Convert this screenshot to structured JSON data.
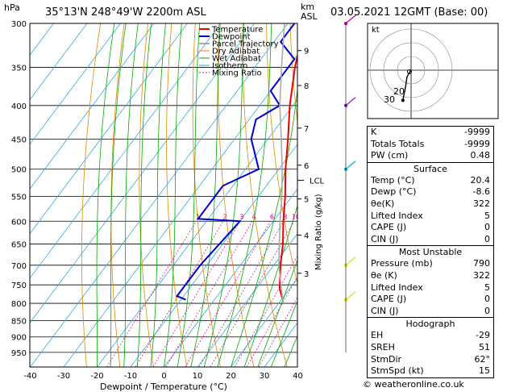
{
  "header": {
    "location": "35°13'N  248°49'W  2200m  ASL",
    "datetime": "03.05.2021  12GMT  (Base: 00)"
  },
  "axes": {
    "ylabel_left": "hPa",
    "ylabel_right_units": [
      "km",
      "ASL"
    ],
    "xlabel": "Dewpoint / Temperature (°C)",
    "mixing_label": "Mixing Ratio (g/kg)",
    "lcl_label": "LCL"
  },
  "legend": [
    "Temperature",
    "Dewpoint",
    "Parcel Trajectory",
    "Dry Adiabat",
    "Wet Adiabat",
    "Isotherm",
    "Mixing Ratio"
  ],
  "footer": "© weatheronline.co.uk",
  "hodo_label": "kt",
  "chart_data": {
    "type": "line",
    "pressure_levels": [
      300,
      350,
      400,
      450,
      500,
      550,
      600,
      650,
      700,
      750,
      800,
      850,
      900,
      950
    ],
    "x_ticks": [
      -40,
      -30,
      -20,
      -10,
      0,
      10,
      20,
      30,
      40
    ],
    "km_ticks": [
      {
        "km": 3,
        "p": 720
      },
      {
        "km": 4,
        "p": 630
      },
      {
        "km": 5,
        "p": 555
      },
      {
        "km": 6,
        "p": 493
      },
      {
        "km": 7,
        "p": 433
      },
      {
        "km": 8,
        "p": 373
      },
      {
        "km": 9,
        "p": 330
      }
    ],
    "mixing_ratios": [
      1,
      2,
      3,
      4,
      6,
      8,
      10,
      16,
      20,
      25
    ],
    "series": [
      {
        "name": "Temperature",
        "color": "#ee0000",
        "points": [
          [
            790,
            20.4
          ],
          [
            760,
            17
          ],
          [
            700,
            12
          ],
          [
            650,
            8
          ],
          [
            600,
            3
          ],
          [
            550,
            -2
          ],
          [
            500,
            -8
          ],
          [
            450,
            -14
          ],
          [
            400,
            -21
          ],
          [
            350,
            -28
          ],
          [
            300,
            -35
          ]
        ]
      },
      {
        "name": "Dewpoint",
        "color": "#0000cc",
        "points": [
          [
            790,
            -8.6
          ],
          [
            780,
            -12
          ],
          [
            700,
            -12
          ],
          [
            650,
            -11
          ],
          [
            600,
            -10
          ],
          [
            595,
            -23
          ],
          [
            550,
            -23
          ],
          [
            530,
            -23
          ],
          [
            500,
            -16
          ],
          [
            450,
            -25
          ],
          [
            420,
            -28
          ],
          [
            400,
            -24
          ],
          [
            380,
            -30
          ],
          [
            340,
            -30
          ],
          [
            320,
            -38
          ],
          [
            300,
            -38
          ]
        ]
      },
      {
        "name": "Parcel Trajectory",
        "color": "#aaaaaa",
        "points": [
          [
            790,
            20.4
          ],
          [
            700,
            11.5
          ],
          [
            600,
            2
          ],
          [
            550,
            -3
          ],
          [
            500,
            -9
          ],
          [
            450,
            -16
          ],
          [
            400,
            -24
          ],
          [
            350,
            -32
          ],
          [
            300,
            -41
          ]
        ]
      }
    ],
    "winds": [
      {
        "p": 300,
        "color": "#cc0099"
      },
      {
        "p": 400,
        "color": "#9900cc"
      },
      {
        "p": 500,
        "color": "#00aacc"
      },
      {
        "p": 700,
        "color": "#dddd00"
      },
      {
        "p": 790,
        "color": "#dddd00"
      }
    ],
    "hodograph": {
      "rings": [
        10,
        20,
        30
      ],
      "ring_labels": [
        "20",
        "30"
      ],
      "trace": [
        [
          0,
          0
        ],
        [
          -2,
          -3
        ],
        [
          -3,
          -5
        ],
        [
          -4,
          -12
        ],
        [
          -6,
          -22
        ]
      ]
    }
  },
  "indices": [
    {
      "label": "K",
      "value": "-9999"
    },
    {
      "label": "Totals Totals",
      "value": "-9999"
    },
    {
      "label": "PW (cm)",
      "value": "0.48"
    }
  ],
  "surface": {
    "title": "Surface",
    "rows": [
      {
        "label": "Temp (°C)",
        "value": "20.4"
      },
      {
        "label": "Dewp (°C)",
        "value": "-8.6"
      },
      {
        "label": "θe(K)",
        "value": "322"
      },
      {
        "label": "Lifted Index",
        "value": "5"
      },
      {
        "label": "CAPE (J)",
        "value": "0"
      },
      {
        "label": "CIN (J)",
        "value": "0"
      }
    ]
  },
  "unstable": {
    "title": "Most Unstable",
    "rows": [
      {
        "label": "Pressure (mb)",
        "value": "790"
      },
      {
        "label": "θe (K)",
        "value": "322"
      },
      {
        "label": "Lifted Index",
        "value": "5"
      },
      {
        "label": "CAPE (J)",
        "value": "0"
      },
      {
        "label": "CIN (J)",
        "value": "0"
      }
    ]
  },
  "hodograph_table": {
    "title": "Hodograph",
    "rows": [
      {
        "label": "EH",
        "value": "-29"
      },
      {
        "label": "SREH",
        "value": "51"
      },
      {
        "label": "StmDir",
        "value": "62°"
      },
      {
        "label": "StmSpd (kt)",
        "value": "15"
      }
    ]
  }
}
